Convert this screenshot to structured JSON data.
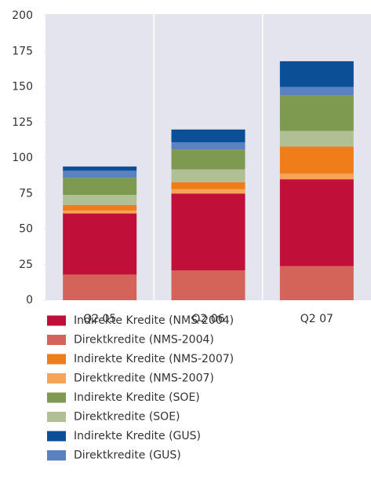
{
  "chart_data": {
    "type": "stacked_bar",
    "categories": [
      "Q2 05",
      "Q2 06",
      "Q2 07"
    ],
    "ylim": [
      0,
      200
    ],
    "yticks": [
      0,
      25,
      50,
      75,
      100,
      125,
      150,
      175,
      200
    ],
    "series": [
      {
        "name": "Indirekte Kredite (NMS-2004)",
        "color": "#c0103a",
        "values": [
          43,
          54,
          61
        ]
      },
      {
        "name": "Direktkredite (NMS-2004)",
        "color": "#d4645a",
        "values": [
          18,
          21,
          24
        ]
      },
      {
        "name": "Indirekte Kredite (NMS-2007)",
        "color": "#ef7d1a",
        "values": [
          4,
          5,
          19
        ]
      },
      {
        "name": "Direktkredite (NMS-2007)",
        "color": "#f5a55a",
        "values": [
          2,
          3,
          4
        ]
      },
      {
        "name": "Indirekte Kredite (SOE)",
        "color": "#7e9a50",
        "values": [
          12,
          14,
          25
        ]
      },
      {
        "name": "Direktkredite (SOE)",
        "color": "#b1bf94",
        "values": [
          7,
          9,
          11
        ]
      },
      {
        "name": "Indirekte Kredite (GUS)",
        "color": "#0b4f96",
        "values": [
          3,
          9,
          18
        ]
      },
      {
        "name": "Direktkredite (GUS)",
        "color": "#5b82c0",
        "values": [
          5,
          5,
          6
        ]
      }
    ]
  }
}
